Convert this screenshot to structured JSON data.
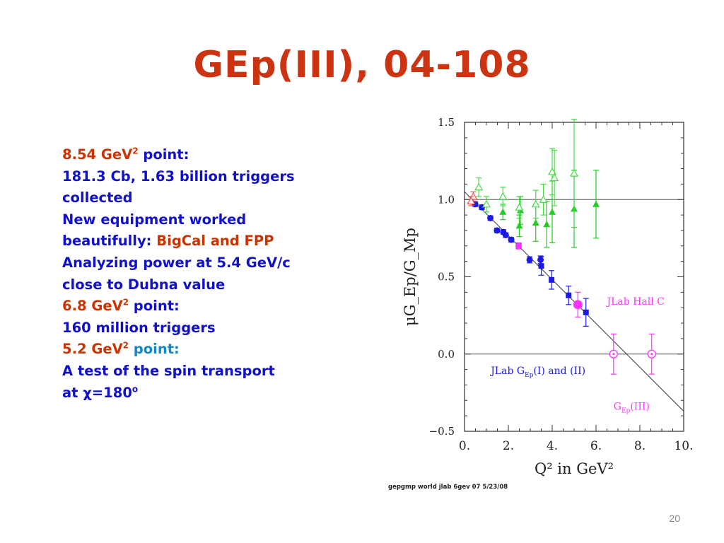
{
  "slide": {
    "title": "GEp(III), 04-108",
    "page_number": "20",
    "footer_note": "gepgmp world jlab 6gev 07 5/23/08"
  },
  "bullets": {
    "l1_value": "8.54 GeV",
    "l1_sup": "2",
    "l1_rest": " point:",
    "l2": "181.3 Cb, 1.63 billion triggers",
    "l3": "collected",
    "l4": "New equipment worked",
    "l5_pre": "beautifully: ",
    "l5_red": "BigCal and FPP",
    "l6": "Analyzing power at 5.4 GeV/c",
    "l7": "close to Dubna value",
    "l8_value": "6.8 GeV",
    "l8_sup": "2",
    "l8_rest": " point:",
    "l9": "160 million triggers",
    "l10_value": "5.2 GeV",
    "l10_sup": "2",
    "l10_rest": " point:",
    "l11": "A test of the spin transport",
    "l12_pre": "at χ=180",
    "l12_sup": "o"
  },
  "chart_data": {
    "type": "scatter",
    "xlabel": "Q²  in  GeV²",
    "ylabel": "μG_Ep/G_Mp",
    "xlim": [
      0,
      10
    ],
    "ylim": [
      -0.5,
      1.5
    ],
    "x_ticks": [
      0,
      2,
      4,
      6,
      8,
      10
    ],
    "x_tick_labels": [
      "0.",
      "2.",
      "4.",
      "6.",
      "8.",
      "10."
    ],
    "y_ticks": [
      -0.5,
      0,
      0.5,
      1,
      1.5
    ],
    "y_tick_labels": [
      "−0.5",
      "0.0",
      "0.5",
      "1.0",
      "1.5"
    ],
    "reference_lines": [
      0,
      1
    ],
    "fit_line": {
      "x": [
        0,
        10
      ],
      "y": [
        1.05,
        -0.37
      ]
    },
    "annotations": {
      "hall_c": "JLab  Hall  C",
      "gep12_prefix": "JLab  G",
      "gep12_sub": "Ep",
      "gep12_suffix": "(I)  and  (II)",
      "gep3_prefix": "G",
      "gep3_sub": "Ep",
      "gep3_suffix": "(III)"
    },
    "colors": {
      "jlab_gep12_circles": "#1a1ae6",
      "jlab_gep12_squares": "#1a1ae6",
      "hall_c_filled": "#22cc22",
      "hall_c_open": "#44dd44",
      "gep3": "#ff33ff",
      "early": "#ee5555"
    },
    "series": [
      {
        "marker": "circle-filled",
        "color": "#1a1ae6",
        "points": [
          {
            "x": 0.49,
            "y": 0.97,
            "err": 0.015
          },
          {
            "x": 0.79,
            "y": 0.95,
            "err": 0.015
          },
          {
            "x": 1.18,
            "y": 0.88,
            "err": 0.015
          },
          {
            "x": 1.48,
            "y": 0.8,
            "err": 0.015
          },
          {
            "x": 1.77,
            "y": 0.79,
            "err": 0.015
          },
          {
            "x": 1.88,
            "y": 0.77,
            "err": 0.015
          },
          {
            "x": 2.13,
            "y": 0.74,
            "err": 0.015
          },
          {
            "x": 2.47,
            "y": 0.7,
            "err": 0.015
          },
          {
            "x": 2.97,
            "y": 0.61,
            "err": 0.02
          },
          {
            "x": 3.47,
            "y": 0.61,
            "err": 0.025
          }
        ]
      },
      {
        "marker": "square-filled",
        "color": "#1a1ae6",
        "points": [
          {
            "x": 3.5,
            "y": 0.57,
            "err": 0.06
          },
          {
            "x": 3.97,
            "y": 0.48,
            "err": 0.06
          },
          {
            "x": 4.75,
            "y": 0.38,
            "err": 0.06
          },
          {
            "x": 5.54,
            "y": 0.27,
            "err": 0.09
          }
        ]
      },
      {
        "marker": "triangle-filled",
        "color": "#22cc22",
        "points": [
          {
            "x": 1.75,
            "y": 0.92,
            "err": 0.05
          },
          {
            "x": 2.5,
            "y": 0.83,
            "err": 0.07
          },
          {
            "x": 2.55,
            "y": 0.93,
            "err": 0.09
          },
          {
            "x": 3.25,
            "y": 0.85,
            "err": 0.12
          },
          {
            "x": 3.75,
            "y": 0.84,
            "err": 0.15
          },
          {
            "x": 4.0,
            "y": 0.92,
            "err": 0.2
          },
          {
            "x": 5.0,
            "y": 0.94,
            "err": 0.25
          },
          {
            "x": 6.0,
            "y": 0.97,
            "err": 0.22
          }
        ]
      },
      {
        "marker": "triangle-open",
        "color": "#44dd44",
        "points": [
          {
            "x": 0.65,
            "y": 1.08,
            "err": 0.06
          },
          {
            "x": 1.0,
            "y": 0.97,
            "err": 0.05
          },
          {
            "x": 1.75,
            "y": 1.02,
            "err": 0.06
          },
          {
            "x": 2.5,
            "y": 0.95,
            "err": 0.07
          },
          {
            "x": 3.25,
            "y": 0.97,
            "err": 0.09
          },
          {
            "x": 3.6,
            "y": 1.0,
            "err": 0.1
          },
          {
            "x": 4.0,
            "y": 1.18,
            "err": 0.15
          },
          {
            "x": 4.1,
            "y": 1.14,
            "err": 0.18
          },
          {
            "x": 5.0,
            "y": 1.17,
            "err": 0.35
          }
        ]
      },
      {
        "marker": "circle-filled",
        "color": "#ff33ff",
        "points": [
          {
            "x": 2.47,
            "y": 0.7,
            "err": 0.02
          },
          {
            "x": 5.17,
            "y": 0.32,
            "err": 0.08
          }
        ]
      },
      {
        "marker": "circle-dot-open",
        "color": "#ff33ff",
        "points": [
          {
            "x": 6.8,
            "y": 0.0,
            "err": 0.13
          },
          {
            "x": 8.54,
            "y": 0.0,
            "err": 0.13
          }
        ]
      },
      {
        "marker": "triangle-open",
        "color": "#ee5555",
        "points": [
          {
            "x": 0.4,
            "y": 1.02,
            "err": 0.03
          },
          {
            "x": 0.3,
            "y": 0.99,
            "err": 0.03
          }
        ]
      }
    ]
  }
}
